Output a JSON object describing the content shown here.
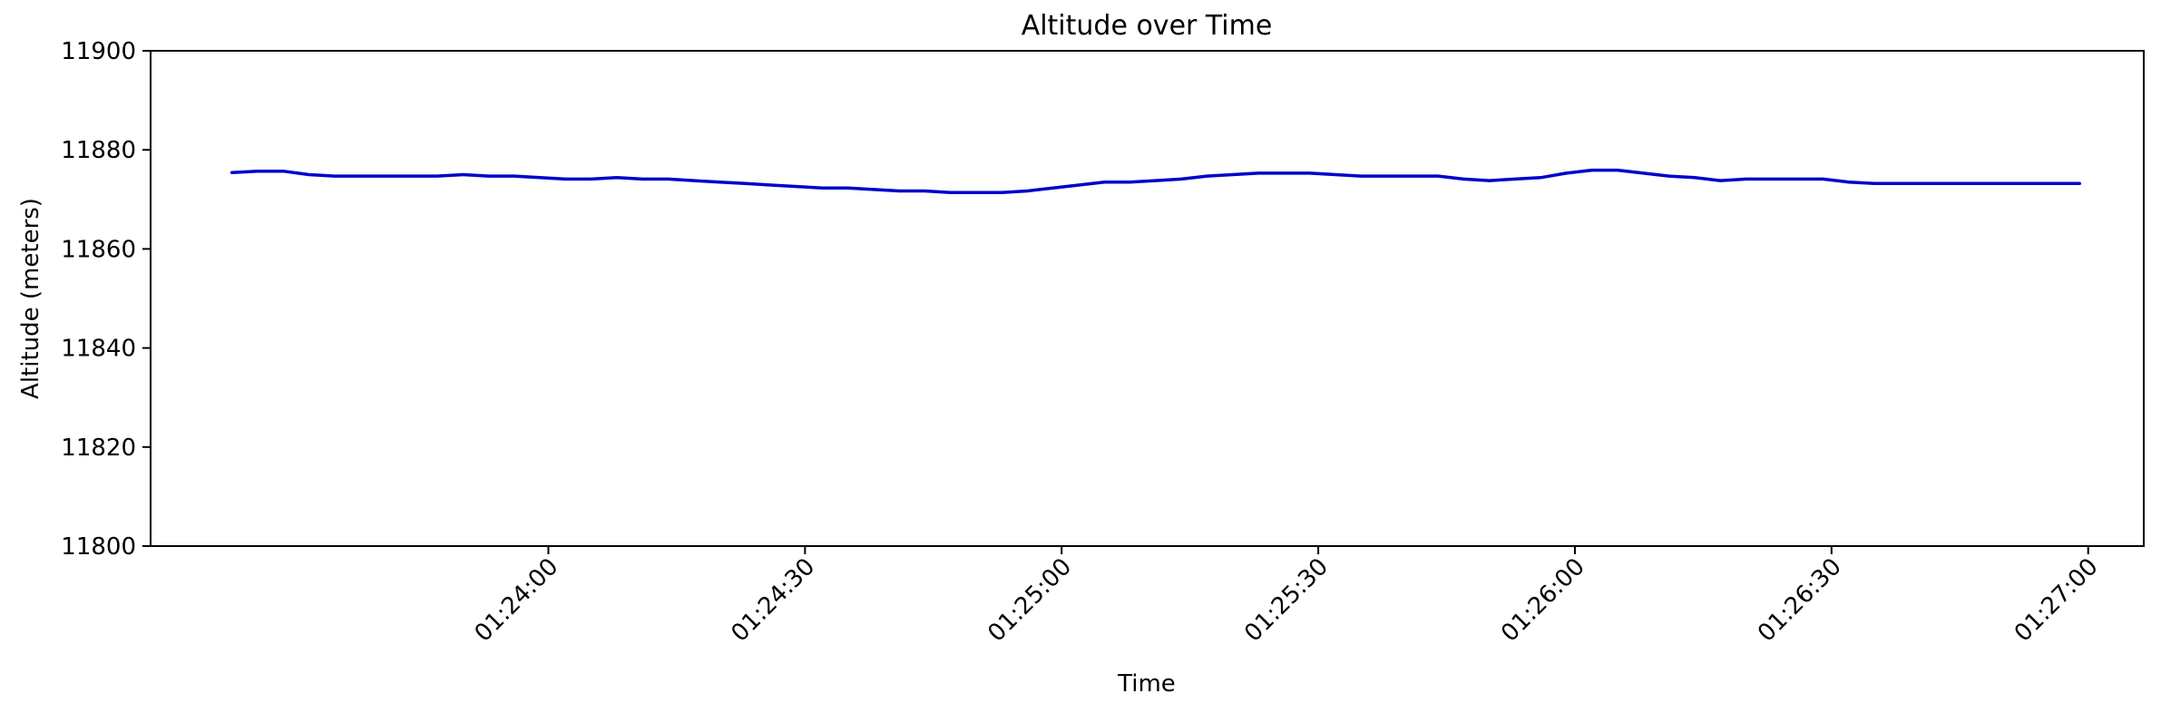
{
  "chart_data": {
    "type": "line",
    "title": "Altitude over Time",
    "xlabel": "Time",
    "ylabel": "Altitude (meters)",
    "ylim": [
      11800,
      11900
    ],
    "xlim": [
      "01:23:13.5",
      "01:27:06.5"
    ],
    "yticks": [
      11800,
      11820,
      11840,
      11860,
      11880,
      11900
    ],
    "xticks": [
      "01:24:00",
      "01:24:30",
      "01:25:00",
      "01:25:30",
      "01:26:00",
      "01:26:30",
      "01:27:00"
    ],
    "grid": false,
    "line_color": "#0000cc",
    "series": [
      {
        "x": [
          "01:23:23",
          "01:23:26",
          "01:23:29",
          "01:23:32",
          "01:23:35",
          "01:23:38",
          "01:23:41",
          "01:23:44",
          "01:23:47",
          "01:23:50",
          "01:23:53",
          "01:23:56",
          "01:23:59",
          "01:24:02",
          "01:24:05",
          "01:24:08",
          "01:24:11",
          "01:24:14",
          "01:24:17",
          "01:24:20",
          "01:24:23",
          "01:24:26",
          "01:24:29",
          "01:24:32",
          "01:24:35",
          "01:24:38",
          "01:24:41",
          "01:24:44",
          "01:24:47",
          "01:24:50",
          "01:24:53",
          "01:24:56",
          "01:24:59",
          "01:25:02",
          "01:25:05",
          "01:25:08",
          "01:25:11",
          "01:25:14",
          "01:25:17",
          "01:25:20",
          "01:25:23",
          "01:25:26",
          "01:25:29",
          "01:25:32",
          "01:25:35",
          "01:25:38",
          "01:25:41",
          "01:25:44",
          "01:25:47",
          "01:25:50",
          "01:25:53",
          "01:25:56",
          "01:25:59",
          "01:26:02",
          "01:26:05",
          "01:26:08",
          "01:26:11",
          "01:26:14",
          "01:26:17",
          "01:26:20",
          "01:26:23",
          "01:26:26",
          "01:26:29",
          "01:26:32",
          "01:26:35",
          "01:26:38",
          "01:26:41",
          "01:26:44",
          "01:26:47",
          "01:26:50",
          "01:26:53",
          "01:26:56",
          "01:26:59"
        ],
        "y": [
          11875.4,
          11875.7,
          11875.7,
          11875.0,
          11874.7,
          11874.7,
          11874.7,
          11874.7,
          11874.7,
          11875.0,
          11874.7,
          11874.7,
          11874.4,
          11874.1,
          11874.1,
          11874.4,
          11874.1,
          11874.1,
          11873.8,
          11873.5,
          11873.2,
          11872.9,
          11872.6,
          11872.3,
          11872.3,
          11872.0,
          11871.7,
          11871.7,
          11871.4,
          11871.4,
          11871.4,
          11871.7,
          11872.3,
          11872.9,
          11873.5,
          11873.5,
          11873.8,
          11874.1,
          11874.7,
          11875.0,
          11875.3,
          11875.3,
          11875.3,
          11875.0,
          11874.7,
          11874.7,
          11874.7,
          11874.7,
          11874.1,
          11873.8,
          11874.1,
          11874.4,
          11875.3,
          11875.9,
          11875.9,
          11875.3,
          11874.7,
          11874.4,
          11873.8,
          11874.1,
          11874.1,
          11874.1,
          11874.1,
          11873.5,
          11873.2,
          11873.2,
          11873.2,
          11873.2,
          11873.2,
          11873.2,
          11873.2,
          11873.2,
          11873.2
        ]
      }
    ]
  }
}
